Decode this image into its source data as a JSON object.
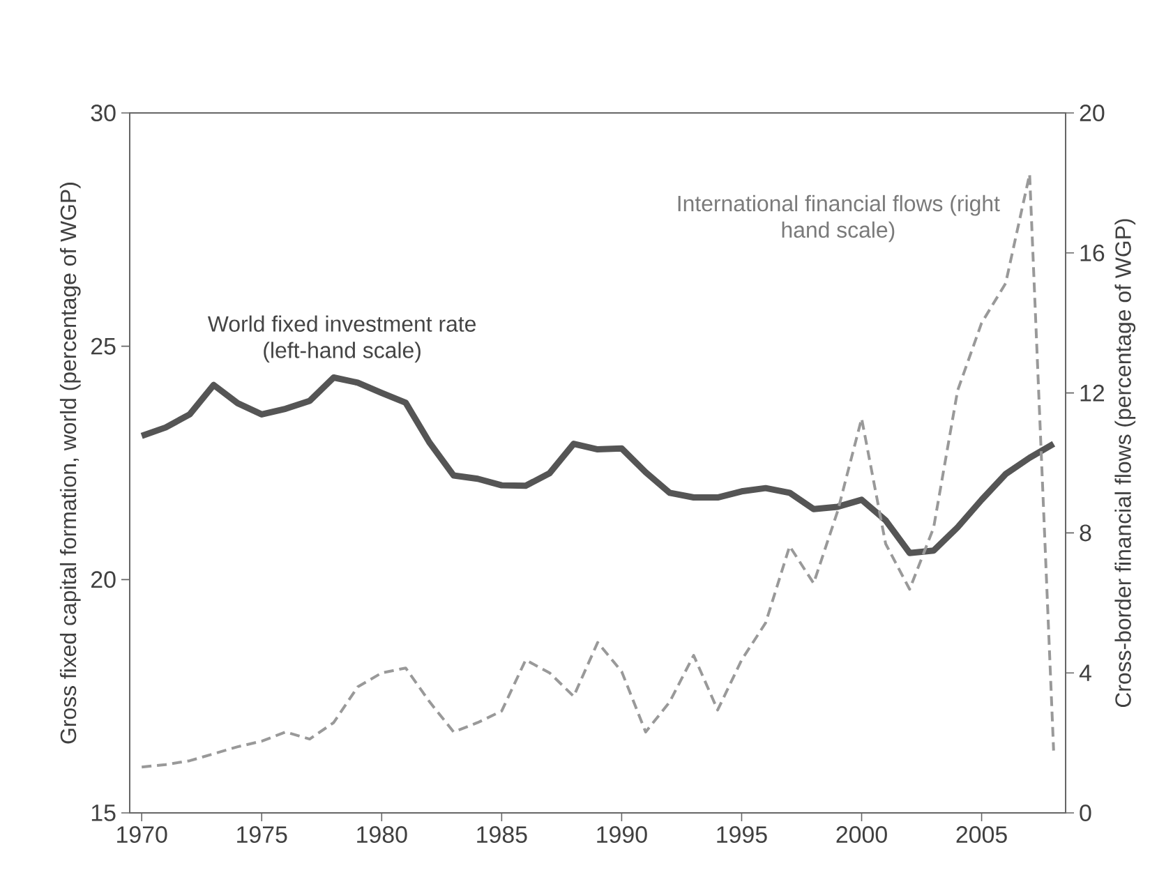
{
  "chart_data": {
    "type": "line",
    "x": [
      1970,
      1971,
      1972,
      1973,
      1974,
      1975,
      1976,
      1977,
      1978,
      1979,
      1980,
      1981,
      1982,
      1983,
      1984,
      1985,
      1986,
      1987,
      1988,
      1989,
      1990,
      1991,
      1992,
      1993,
      1994,
      1995,
      1996,
      1997,
      1998,
      1999,
      2000,
      2001,
      2002,
      2003,
      2004,
      2005,
      2006,
      2007,
      2008
    ],
    "xlim": [
      1969.5,
      2008.5
    ],
    "xticks": [
      1970,
      1975,
      1980,
      1985,
      1990,
      1995,
      2000,
      2005
    ],
    "ylim": [
      15,
      30
    ],
    "yticks": [
      15,
      20,
      25,
      30
    ],
    "y2lim": [
      0,
      20
    ],
    "y2ticks": [
      0,
      4,
      8,
      12,
      16,
      20
    ],
    "ylabel": "Gross fixed capital formation, world (percentage of WGP)",
    "y2label": "Cross-border financial flows (percentage of WGP)",
    "series": [
      {
        "name": "World fixed investment rate (left-hand scale)",
        "color": "#555555",
        "line_style": "solid",
        "values": [
          23.08,
          23.26,
          23.54,
          24.17,
          23.78,
          23.54,
          23.66,
          23.83,
          24.33,
          24.22,
          24.0,
          23.79,
          22.93,
          22.23,
          22.16,
          22.02,
          22.01,
          22.28,
          22.91,
          22.79,
          22.81,
          22.3,
          21.86,
          21.76,
          21.76,
          21.89,
          21.96,
          21.86,
          21.51,
          21.56,
          21.71,
          21.27,
          20.57,
          20.62,
          21.12,
          21.71,
          22.26,
          22.61,
          22.91
        ]
      },
      {
        "name": "International financial flows (right hand scale)",
        "color": "#999999",
        "line_style": "dashed",
        "axis": "y2",
        "values": [
          1.31,
          1.38,
          1.49,
          1.69,
          1.89,
          2.05,
          2.31,
          2.11,
          2.58,
          3.6,
          4.0,
          4.14,
          3.17,
          2.31,
          2.58,
          2.91,
          4.37,
          4.0,
          3.33,
          4.87,
          4.04,
          2.31,
          3.17,
          4.5,
          2.94,
          4.37,
          5.43,
          7.62,
          6.56,
          8.62,
          11.27,
          7.69,
          6.39,
          8.15,
          12.07,
          14.0,
          15.13,
          18.25,
          1.78
        ]
      }
    ]
  }
}
